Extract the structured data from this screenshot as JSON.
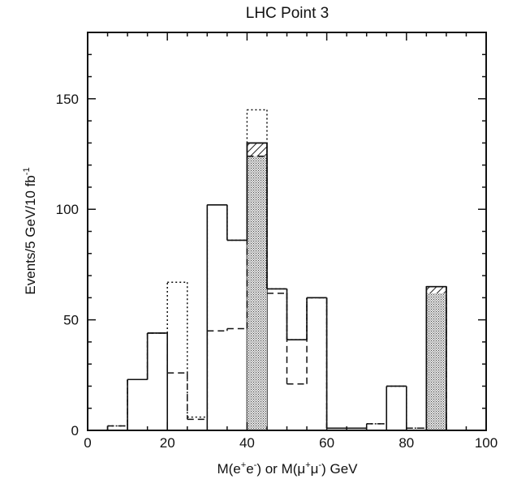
{
  "chart_data": {
    "type": "bar",
    "title": "LHC Point 3",
    "xlabel": "M(e+e-) or M(μ+μ-) GeV",
    "ylabel": "Events/5 GeV/10 fb-1",
    "xlim": [
      0,
      100
    ],
    "ylim": [
      0,
      180
    ],
    "xticks": [
      "0",
      "20",
      "40",
      "60",
      "80",
      "100"
    ],
    "yticks": [
      "0",
      "50",
      "100",
      "150"
    ],
    "bin_width": 5,
    "bin_edges": [
      5,
      10,
      15,
      20,
      25,
      30,
      35,
      40,
      45,
      50,
      55,
      60,
      65,
      70,
      75,
      80,
      85,
      90,
      95
    ],
    "series": [
      {
        "style": "dotted outline",
        "values": [
          2,
          23,
          44,
          67,
          6,
          102,
          86,
          145,
          64,
          41,
          60,
          1,
          1,
          3,
          20,
          1,
          65,
          0
        ]
      },
      {
        "style": "dashed outline",
        "values": [
          2,
          23,
          44,
          26,
          5,
          45,
          46,
          124,
          62,
          21,
          60,
          1,
          1,
          3,
          0,
          1,
          65,
          0
        ]
      },
      {
        "style": "solid outline",
        "values": [
          0,
          23,
          44,
          0,
          0,
          102,
          86,
          130,
          64,
          41,
          60,
          1,
          1,
          0,
          20,
          0,
          65,
          0
        ]
      },
      {
        "style": "hatched fill",
        "values": [
          0,
          0,
          0,
          0,
          0,
          0,
          0,
          130,
          0,
          0,
          0,
          0,
          0,
          0,
          0,
          0,
          65,
          0
        ]
      },
      {
        "style": "stippled fill",
        "values": [
          0,
          0,
          0,
          0,
          0,
          0,
          0,
          124,
          0,
          0,
          0,
          0,
          0,
          0,
          0,
          0,
          62,
          0
        ]
      }
    ],
    "grid": false,
    "legend": "none"
  },
  "labels": {
    "title": "LHC Point 3",
    "xlabel_a": "M(e",
    "xlabel_sup1": "+",
    "xlabel_b": "e",
    "xlabel_sup2": "-",
    "xlabel_c": ") or M(μ",
    "xlabel_sup3": "+",
    "xlabel_d": "μ",
    "xlabel_sup4": "-",
    "xlabel_e": ") GeV",
    "ylabel_main": "Events/5 GeV/10 fb",
    "ylabel_sup": "-1"
  }
}
